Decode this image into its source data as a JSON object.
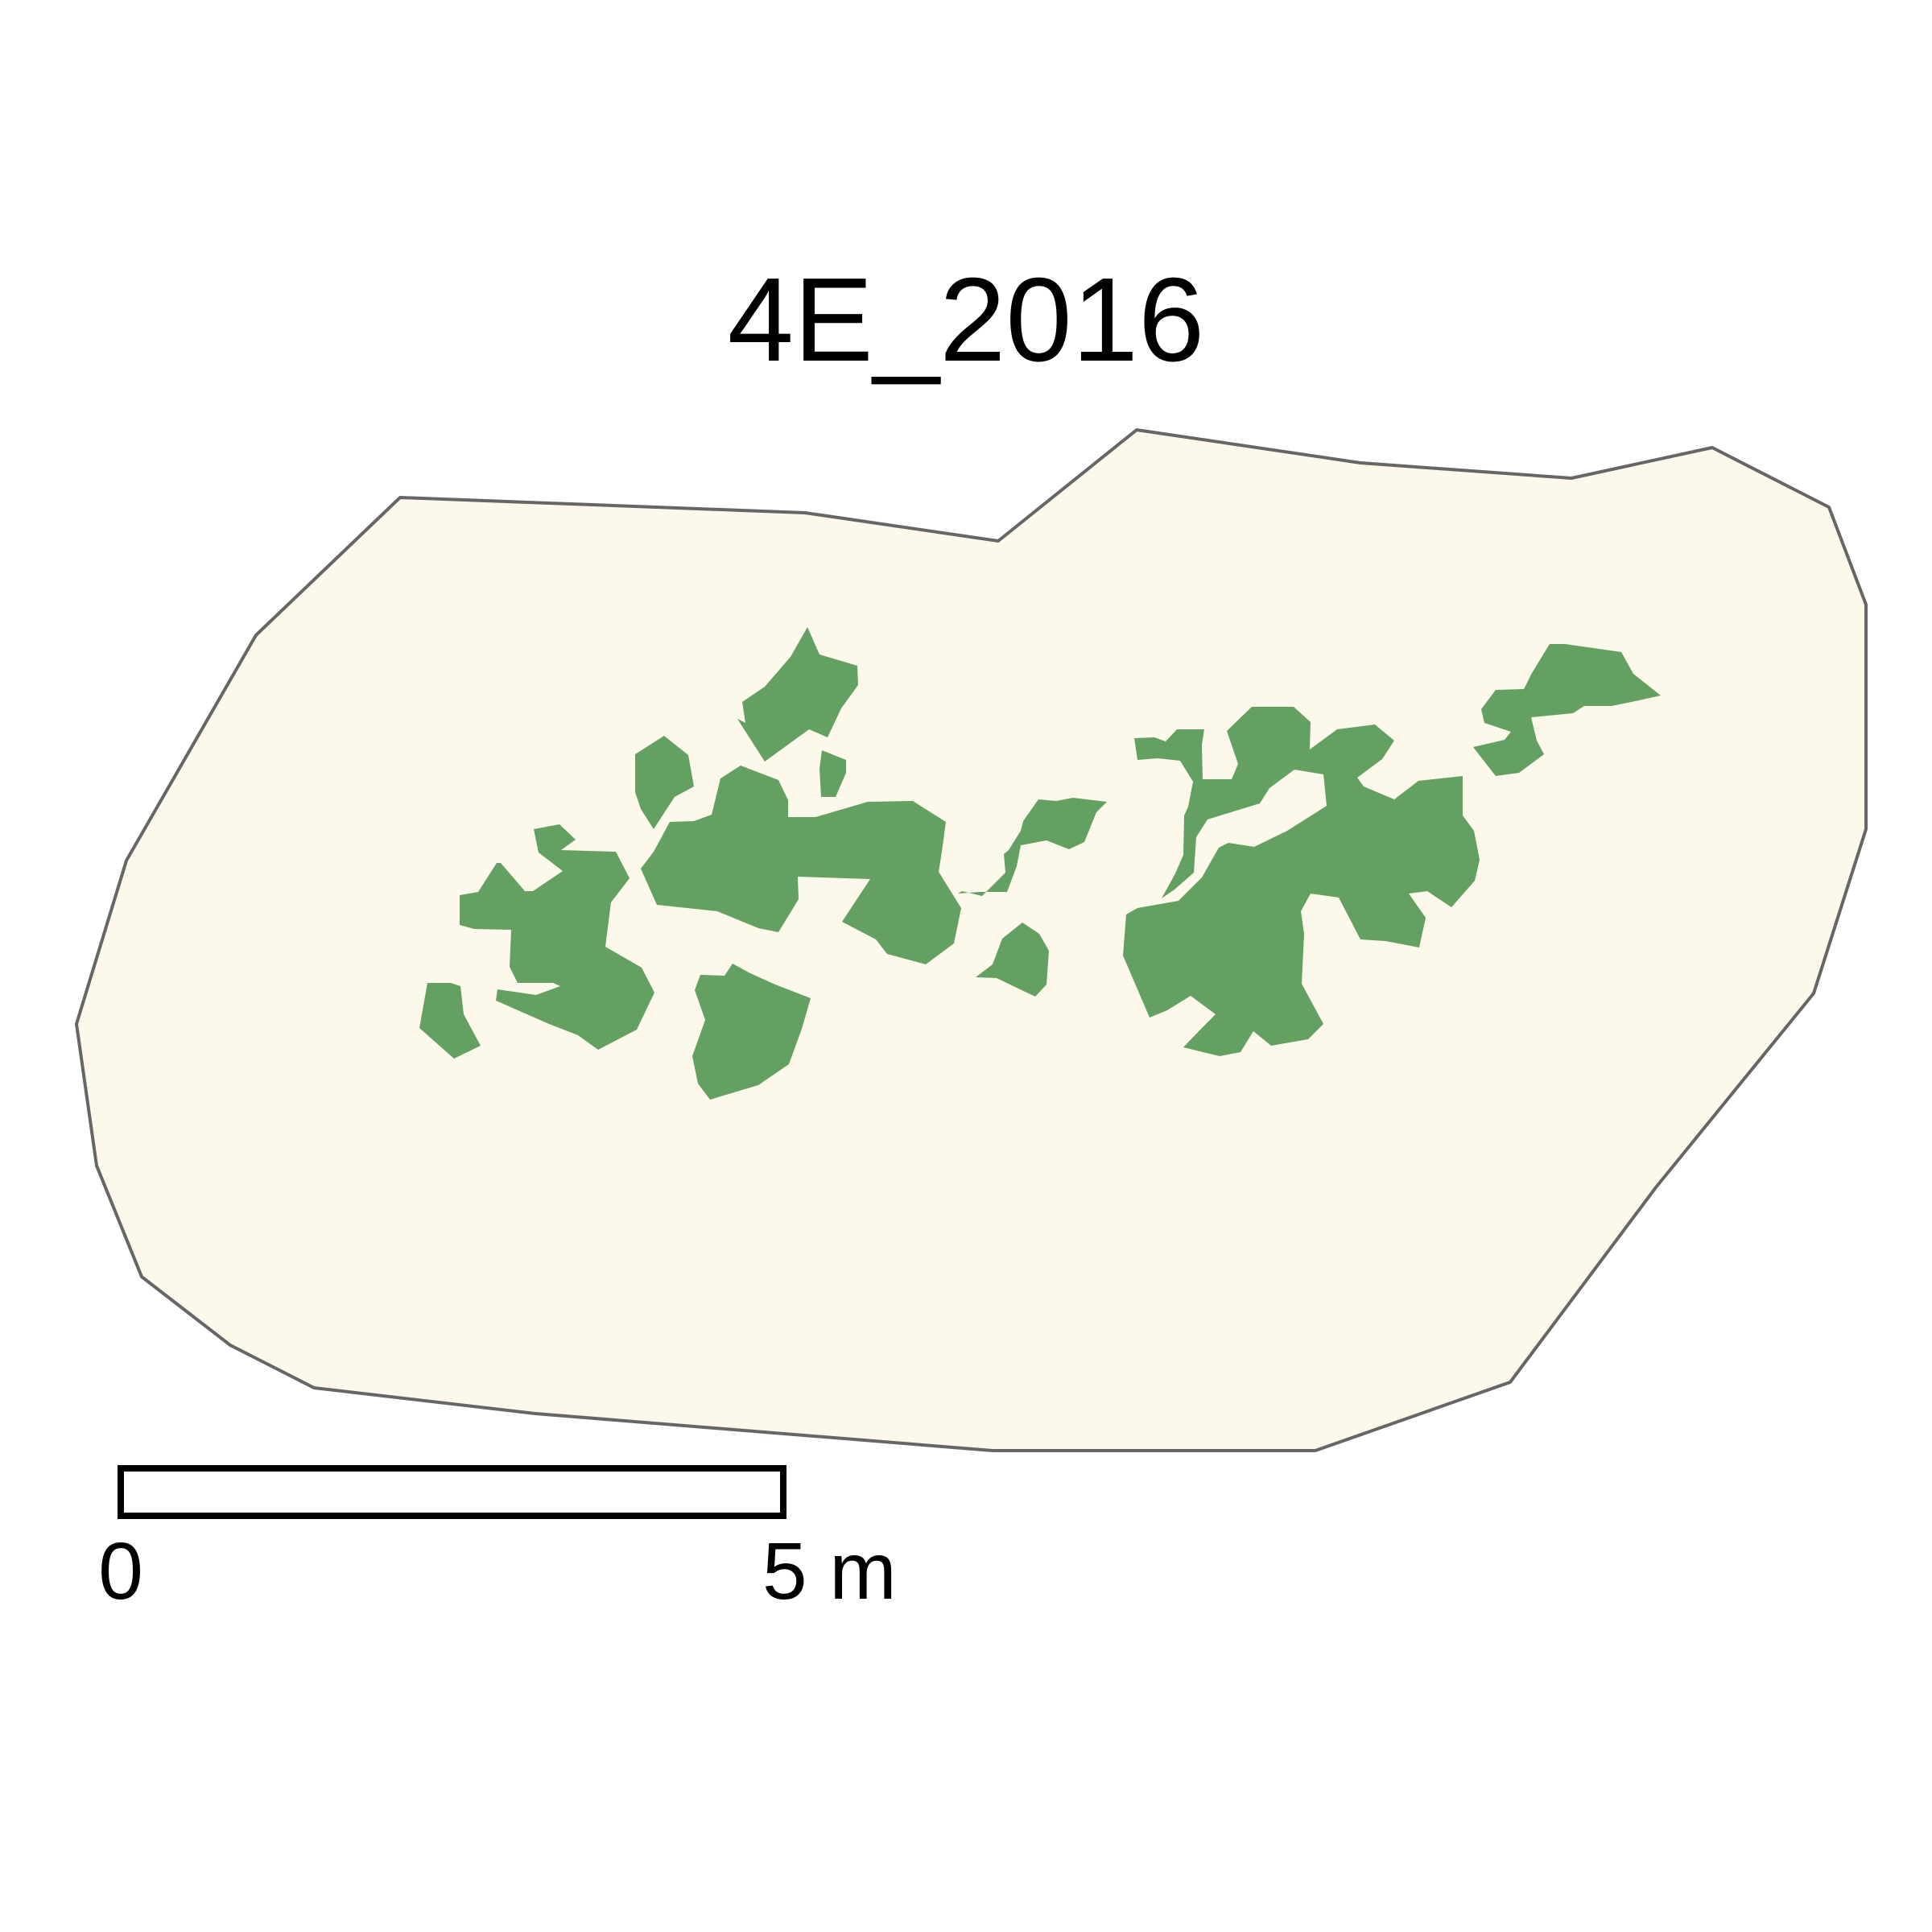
{
  "map": {
    "title": "4E_2016",
    "colors": {
      "plot_fill": "#fcf9ea",
      "plot_outline": "#666666",
      "vegetation": "#64a061",
      "scale_bar": "#000000"
    },
    "layers": [
      {
        "name": "plot-boundary",
        "kind": "polygon outline",
        "features": 1
      },
      {
        "name": "vegetation-patches",
        "kind": "filled polygons",
        "features": 14
      }
    ]
  },
  "scale_bar": {
    "label_start": "0",
    "label_end": "5 m"
  }
}
